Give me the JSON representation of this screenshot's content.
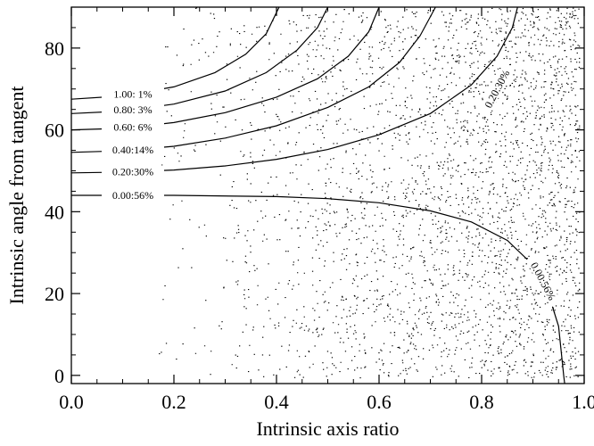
{
  "chart_data": {
    "type": "scatter",
    "title": "",
    "xlabel": "Intrinsic axis ratio",
    "ylabel": "Intrinsic angle from tangent",
    "xlim": [
      0.0,
      1.0
    ],
    "ylim": [
      -2,
      90
    ],
    "x_ticks": [
      0.0,
      0.2,
      0.4,
      0.6,
      0.8,
      1.0
    ],
    "x_tick_labels": [
      "0.0",
      "0.2",
      "0.4",
      "0.6",
      "0.8",
      "1.0"
    ],
    "y_ticks": [
      0,
      20,
      40,
      60,
      80
    ],
    "y_tick_labels": [
      "0",
      "20",
      "40",
      "60",
      "80"
    ],
    "grid": false,
    "legend": "none",
    "scatter": {
      "description_of_density": "uniform-random points, density increasing with axis ratio, absent below ~0.17",
      "x_min": 0.17,
      "x_max": 0.99,
      "point_color": "#000000"
    },
    "contours": [
      {
        "label": "1.00: 1%",
        "points": [
          [
            0.0,
            67.5
          ],
          [
            0.1,
            68.3
          ],
          [
            0.2,
            70.5
          ],
          [
            0.28,
            74
          ],
          [
            0.34,
            78.5
          ],
          [
            0.38,
            83.5
          ],
          [
            0.405,
            90
          ]
        ]
      },
      {
        "label": "0.80: 3%",
        "points": [
          [
            0.0,
            64
          ],
          [
            0.1,
            64.6
          ],
          [
            0.2,
            66.3
          ],
          [
            0.3,
            69.5
          ],
          [
            0.38,
            74
          ],
          [
            0.44,
            79.5
          ],
          [
            0.48,
            85
          ],
          [
            0.5,
            90
          ]
        ]
      },
      {
        "label": "0.60: 6%",
        "points": [
          [
            0.0,
            60
          ],
          [
            0.1,
            60.4
          ],
          [
            0.2,
            61.8
          ],
          [
            0.3,
            64.2
          ],
          [
            0.4,
            68
          ],
          [
            0.48,
            72.5
          ],
          [
            0.54,
            78
          ],
          [
            0.58,
            84
          ],
          [
            0.6,
            90
          ]
        ]
      },
      {
        "label": "0.40:14%",
        "points": [
          [
            0.0,
            54.5
          ],
          [
            0.1,
            54.9
          ],
          [
            0.2,
            56
          ],
          [
            0.3,
            58
          ],
          [
            0.4,
            61
          ],
          [
            0.5,
            65.5
          ],
          [
            0.58,
            70.5
          ],
          [
            0.64,
            76.5
          ],
          [
            0.68,
            83
          ],
          [
            0.71,
            90
          ]
        ]
      },
      {
        "label": "0.20:30%",
        "points": [
          [
            0.0,
            49.5
          ],
          [
            0.1,
            49.7
          ],
          [
            0.2,
            50.2
          ],
          [
            0.3,
            51.2
          ],
          [
            0.4,
            52.8
          ],
          [
            0.5,
            55.2
          ],
          [
            0.6,
            58.8
          ],
          [
            0.7,
            64
          ],
          [
            0.78,
            71
          ],
          [
            0.83,
            78
          ],
          [
            0.86,
            85
          ],
          [
            0.87,
            90
          ]
        ]
      },
      {
        "label": "0.00:56%",
        "points": [
          [
            0.0,
            44
          ],
          [
            0.2,
            44
          ],
          [
            0.4,
            43.7
          ],
          [
            0.5,
            43.2
          ],
          [
            0.6,
            42.2
          ],
          [
            0.7,
            40.2
          ],
          [
            0.78,
            37.5
          ],
          [
            0.85,
            33
          ],
          [
            0.9,
            27
          ],
          [
            0.93,
            20
          ],
          [
            0.95,
            12
          ],
          [
            0.96,
            0
          ],
          [
            0.962,
            -2
          ]
        ]
      }
    ],
    "inline_contour_labels": [
      {
        "label": "0.20:30%",
        "at": [
          0.83,
          70
        ],
        "rotation_deg": -62
      },
      {
        "label": "0.00:56%",
        "at": [
          0.92,
          23
        ],
        "rotation_deg": 62
      }
    ],
    "left_label_anchors": [
      {
        "label": "1.00: 1%",
        "x": 0.12
      },
      {
        "label": "0.80: 3%",
        "x": 0.12
      },
      {
        "label": "0.60: 6%",
        "x": 0.12
      },
      {
        "label": "0.40:14%",
        "x": 0.12
      },
      {
        "label": "0.20:30%",
        "x": 0.12
      },
      {
        "label": "0.00:56%",
        "x": 0.12
      }
    ]
  }
}
